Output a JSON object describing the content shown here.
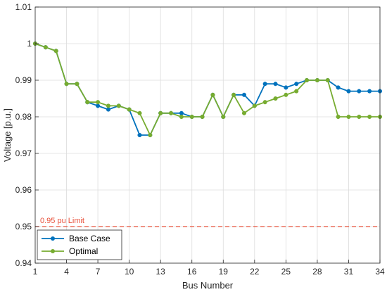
{
  "chart_data": {
    "type": "line",
    "xlabel": "Bus Number",
    "ylabel": "Voltage [p.u.]",
    "xlim": [
      1,
      34
    ],
    "ylim": [
      0.94,
      1.01
    ],
    "xticks": [
      1,
      4,
      7,
      10,
      13,
      16,
      19,
      22,
      25,
      28,
      31,
      34
    ],
    "yticks": [
      0.94,
      0.95,
      0.96,
      0.97,
      0.98,
      0.99,
      1.0,
      1.01
    ],
    "ytick_labels": [
      "0.94",
      "0.95",
      "0.96",
      "0.97",
      "0.98",
      "0.99",
      "1",
      "1.01"
    ],
    "grid": true,
    "legend_position": "bottom-left",
    "series": [
      {
        "name": "Base Case",
        "color": "#0072BD",
        "x": [
          1,
          2,
          3,
          4,
          5,
          6,
          7,
          8,
          9,
          10,
          11,
          12,
          13,
          14,
          15,
          16,
          17,
          18,
          19,
          20,
          21,
          22,
          23,
          24,
          25,
          26,
          27,
          28,
          29,
          30,
          31,
          32,
          33,
          34
        ],
        "values": [
          1.0,
          0.999,
          0.998,
          0.989,
          0.989,
          0.984,
          0.983,
          0.982,
          0.983,
          0.982,
          0.975,
          0.975,
          0.981,
          0.981,
          0.981,
          0.98,
          0.98,
          0.986,
          0.98,
          0.986,
          0.986,
          0.983,
          0.989,
          0.989,
          0.988,
          0.989,
          0.99,
          0.99,
          0.99,
          0.988,
          0.987,
          0.987,
          0.987,
          0.987
        ]
      },
      {
        "name": "Optimal",
        "color": "#77AC30",
        "x": [
          1,
          2,
          3,
          4,
          5,
          6,
          7,
          8,
          9,
          10,
          11,
          12,
          13,
          14,
          15,
          16,
          17,
          18,
          19,
          20,
          21,
          22,
          23,
          24,
          25,
          26,
          27,
          28,
          29,
          30,
          31,
          32,
          33,
          34
        ],
        "values": [
          1.0,
          0.999,
          0.998,
          0.989,
          0.989,
          0.984,
          0.984,
          0.983,
          0.983,
          0.982,
          0.981,
          0.975,
          0.981,
          0.981,
          0.98,
          0.98,
          0.98,
          0.986,
          0.98,
          0.986,
          0.981,
          0.983,
          0.984,
          0.985,
          0.986,
          0.987,
          0.99,
          0.99,
          0.99,
          0.98,
          0.98,
          0.98,
          0.98,
          0.98
        ]
      }
    ],
    "annotations": [
      {
        "type": "hline",
        "y": 0.95,
        "label": "0.95 pu Limit",
        "color": "#E8503A",
        "style": "dashed"
      }
    ]
  }
}
